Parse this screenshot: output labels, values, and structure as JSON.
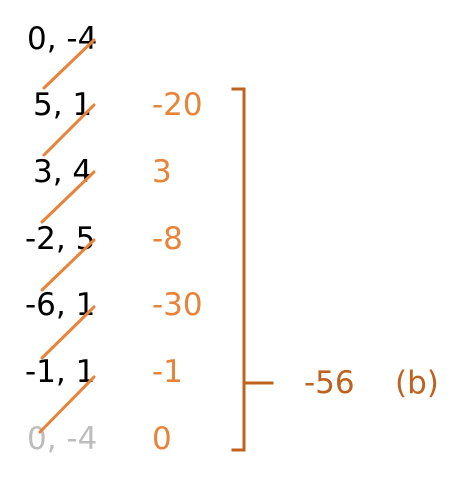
{
  "colors": {
    "pair_text": "#000000",
    "faded_text": "#bdbdbd",
    "accent": "#e8833a",
    "bracket": "#c0621f"
  },
  "rows": [
    {
      "pair": "0, -4",
      "product": ""
    },
    {
      "pair": "5, 1",
      "product": "-20"
    },
    {
      "pair": "3, 4",
      "product": "3"
    },
    {
      "pair": "-2, 5",
      "product": "-8"
    },
    {
      "pair": "-6, 1",
      "product": "-30"
    },
    {
      "pair": "-1, 1",
      "product": "-1"
    },
    {
      "pair": "0, -4",
      "product": "0"
    }
  ],
  "result": {
    "sum": "-56",
    "label": "(b)"
  }
}
